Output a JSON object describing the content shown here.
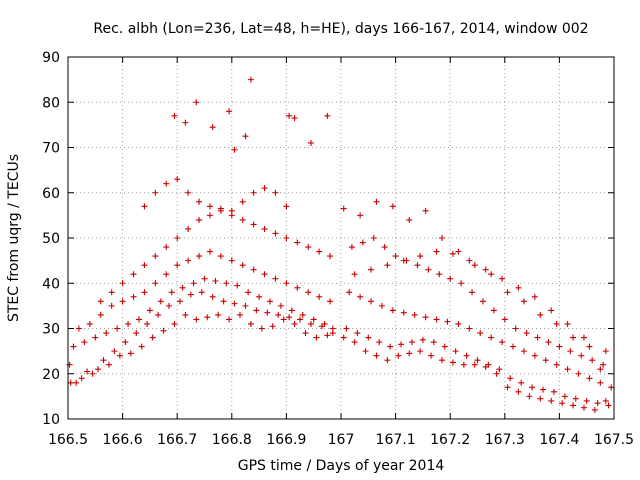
{
  "chart_data": {
    "type": "scatter",
    "title": "Rec. albh (Lon=236, Lat=48, h=HE), days 166-167, 2014, window 002",
    "xlabel": "GPS time / Days of year 2014",
    "ylabel": "STEC from uqrg / TECUs",
    "xlim": [
      166.5,
      167.5
    ],
    "ylim": [
      10,
      90
    ],
    "xticks": [
      "166.5",
      "166.6",
      "166.7",
      "166.8",
      "166.9",
      "167",
      "167.1",
      "167.2",
      "167.3",
      "167.4",
      "167.5"
    ],
    "yticks": [
      "10",
      "20",
      "30",
      "40",
      "50",
      "60",
      "70",
      "80",
      "90"
    ],
    "grid": true,
    "marker": "+",
    "color": "#cc0000",
    "series": [
      {
        "x": [
          166.503,
          166.515,
          166.535,
          166.555,
          166.575,
          166.595,
          166.615,
          166.635,
          166.655,
          166.675,
          166.695,
          166.715,
          166.735,
          166.755,
          166.775,
          166.795,
          166.815,
          166.835,
          166.855,
          166.875,
          166.895,
          166.915,
          166.935,
          166.955,
          166.975,
          166.985,
          166.505,
          166.525,
          166.545,
          166.565,
          166.585,
          166.605,
          166.625,
          166.645,
          166.665,
          166.685,
          166.705,
          166.725,
          166.745,
          166.765,
          166.785,
          166.805,
          166.825,
          166.845,
          166.865,
          166.885,
          166.905,
          166.925,
          166.945,
          166.965,
          166.985,
          166.51,
          166.53,
          166.55,
          166.57,
          166.59,
          166.61,
          166.63,
          166.65,
          166.67,
          166.69,
          166.71,
          166.73,
          166.75,
          166.77,
          166.79,
          166.81,
          166.83,
          166.85,
          166.87,
          166.89,
          166.91,
          166.93,
          166.95,
          166.97,
          166.52,
          166.54,
          166.56,
          166.58,
          166.6,
          166.62,
          166.64,
          166.66,
          166.68,
          166.7,
          166.72,
          166.74,
          166.76,
          166.78,
          166.8,
          166.82,
          166.84,
          166.86,
          166.88,
          166.9,
          166.92,
          166.94,
          166.96,
          166.98,
          166.56,
          166.58,
          166.6,
          166.62,
          166.64,
          166.66,
          166.68,
          166.7,
          166.72,
          166.74,
          166.76,
          166.78,
          166.8,
          166.82,
          166.84,
          166.86,
          166.88,
          166.9,
          166.92,
          166.94,
          166.96,
          166.98,
          166.695,
          166.715,
          166.735,
          166.765,
          166.795,
          166.805,
          166.825,
          166.835,
          166.905,
          166.915,
          166.945,
          166.975,
          166.64,
          166.66,
          166.68,
          166.7,
          166.72,
          166.74,
          166.76,
          166.78,
          166.8,
          166.82,
          166.84,
          166.86,
          166.88,
          166.9,
          167.005,
          167.025,
          167.045,
          167.065,
          167.085,
          167.105,
          167.125,
          167.145,
          167.165,
          167.185,
          167.205,
          167.225,
          167.245,
          167.265,
          167.285,
          167.305,
          167.325,
          167.345,
          167.365,
          167.385,
          167.405,
          167.425,
          167.445,
          167.465,
          167.485,
          167.01,
          167.03,
          167.05,
          167.07,
          167.09,
          167.11,
          167.13,
          167.15,
          167.17,
          167.19,
          167.21,
          167.23,
          167.25,
          167.27,
          167.29,
          167.31,
          167.33,
          167.35,
          167.37,
          167.39,
          167.41,
          167.43,
          167.45,
          167.47,
          167.49,
          167.015,
          167.035,
          167.055,
          167.075,
          167.095,
          167.115,
          167.135,
          167.155,
          167.175,
          167.195,
          167.215,
          167.235,
          167.255,
          167.275,
          167.295,
          167.315,
          167.335,
          167.355,
          167.375,
          167.395,
          167.415,
          167.435,
          167.455,
          167.475,
          167.495,
          167.02,
          167.04,
          167.06,
          167.08,
          167.1,
          167.12,
          167.14,
          167.16,
          167.18,
          167.2,
          167.22,
          167.24,
          167.26,
          167.28,
          167.3,
          167.32,
          167.34,
          167.36,
          167.38,
          167.4,
          167.42,
          167.44,
          167.46,
          167.48,
          167.005,
          167.035,
          167.065,
          167.095,
          167.125,
          167.155,
          167.185,
          167.215,
          167.245,
          167.275,
          167.305,
          167.335,
          167.365,
          167.395,
          167.425,
          167.455,
          167.485,
          167.025,
          167.055,
          167.085,
          167.115,
          167.145,
          167.175,
          167.205,
          167.235,
          167.265,
          167.295,
          167.325,
          167.355,
          167.385,
          167.415,
          167.445,
          167.475
        ],
        "y": [
          22,
          18,
          20.5,
          21,
          22,
          24,
          24.5,
          26,
          28,
          29.5,
          31,
          33,
          32,
          32.5,
          33,
          32,
          33,
          31,
          30,
          30.5,
          32,
          31,
          29,
          28,
          28.5,
          29,
          18,
          19,
          20,
          23,
          25,
          27,
          29,
          31,
          33,
          35,
          36,
          37.5,
          38,
          37,
          36,
          35.5,
          35,
          34,
          33.5,
          33,
          32.5,
          32,
          31,
          30.5,
          30,
          26,
          27,
          28,
          29,
          30,
          31,
          32,
          34,
          36,
          38,
          39,
          40,
          41,
          40.5,
          40,
          39.5,
          38,
          37,
          36,
          35,
          34,
          33,
          32,
          31,
          30,
          31,
          33,
          35,
          36,
          37,
          38,
          40,
          42,
          44,
          45,
          46,
          47,
          46,
          45,
          44,
          43,
          42,
          41,
          40,
          39,
          38,
          37,
          36,
          36,
          38,
          40,
          42,
          44,
          46,
          48,
          50,
          52,
          54,
          55,
          56,
          55,
          54,
          53,
          52,
          51,
          50,
          49,
          48,
          47,
          46,
          77,
          75.5,
          80,
          74.5,
          78,
          69.5,
          72.5,
          85,
          77,
          76.5,
          71,
          77,
          57,
          60,
          62,
          63,
          60,
          58,
          57,
          56.5,
          56,
          58,
          60,
          61,
          60,
          57,
          28,
          27,
          25,
          24,
          23,
          24,
          24.5,
          25,
          24,
          23,
          22.5,
          22,
          22,
          21.5,
          20,
          17,
          16,
          15,
          14.5,
          14,
          13.5,
          13,
          12.5,
          12,
          14,
          30,
          29,
          28,
          27,
          26,
          26.5,
          27,
          27.5,
          27,
          26,
          25,
          24,
          23,
          22,
          21,
          19,
          18,
          17,
          16.5,
          16,
          15,
          14.5,
          14,
          13.5,
          13,
          38,
          37,
          36,
          35,
          34,
          33.5,
          33,
          32.5,
          32,
          31.5,
          31,
          30,
          29,
          28,
          27,
          26,
          25,
          24,
          23,
          22,
          21,
          20,
          19,
          18,
          17,
          48,
          49,
          50,
          48,
          46,
          45,
          44,
          43,
          42,
          41,
          40,
          38,
          36,
          34,
          32,
          30,
          29,
          28,
          27,
          26,
          25,
          24,
          23,
          22,
          56.5,
          55,
          58,
          57,
          54,
          56,
          50,
          47,
          44,
          42,
          38,
          36,
          33,
          31,
          28,
          26,
          25,
          42,
          43,
          44,
          45,
          46,
          47,
          46.5,
          45,
          43,
          41,
          39,
          37,
          34,
          31,
          28,
          21
        ]
      }
    ]
  }
}
